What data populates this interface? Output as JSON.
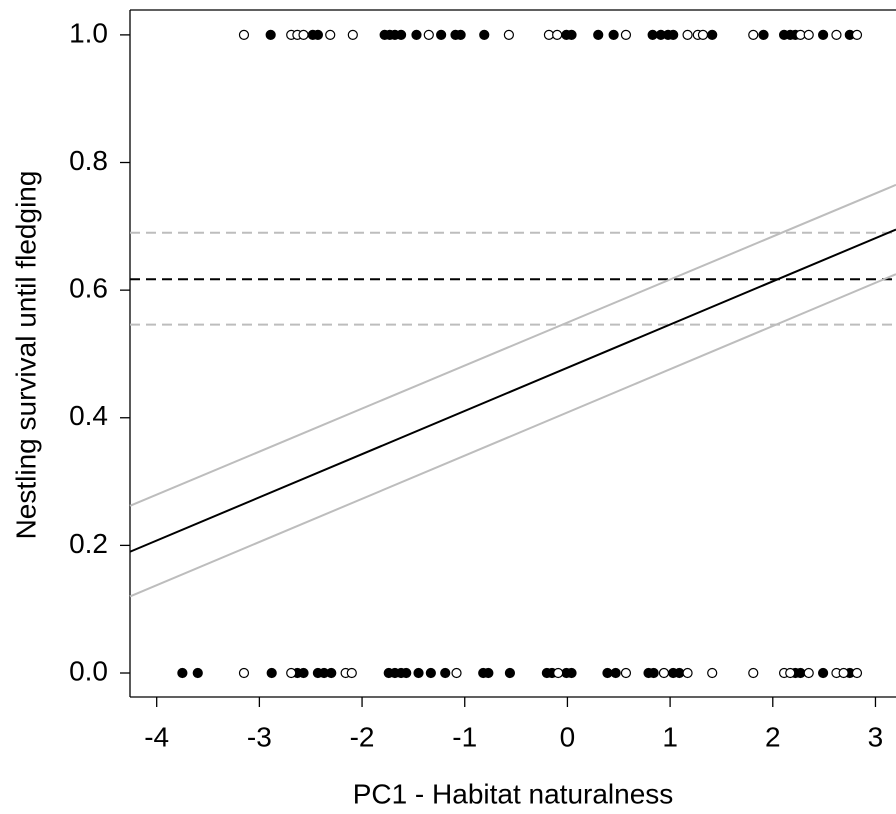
{
  "chart_data": {
    "type": "scatter",
    "x_label": "PC1 - Habitat naturalness",
    "y_label": "Nestling survival until fledging",
    "xlim": [
      -4.26,
      3.2
    ],
    "ylim": [
      -0.0376,
      1.039
    ],
    "xticks": [
      -4,
      -3,
      -2,
      -1,
      0,
      1,
      2,
      3
    ],
    "yticks": [
      {
        "value": 0,
        "label": "0.0"
      },
      0.2,
      0.4,
      0.6,
      0.8,
      {
        "value": 1,
        "label": "1.0"
      }
    ],
    "hlines": [
      {
        "value": 0.69,
        "color": "#bdbdbd",
        "dash": true
      },
      {
        "value": 0.617,
        "color": "#000000",
        "dash": true
      },
      {
        "value": 0.546,
        "color": "#bdbdbd",
        "dash": true
      }
    ],
    "series": [
      {
        "mode": "markers",
        "marker": "filled",
        "color": "#000000",
        "x": [
          -2.89,
          -2.48,
          -2.43,
          -1.78,
          -1.73,
          -1.68,
          -1.62,
          -1.47,
          -1.23,
          -1.09,
          -1.04,
          -0.81,
          -0.01,
          0.04,
          0.3,
          0.45,
          0.83,
          0.91,
          0.98,
          1.03,
          1.41,
          1.91,
          2.11,
          2.17,
          2.22,
          2.49,
          2.75,
          -3.75,
          -3.6,
          -2.88,
          -2.63,
          -2.57,
          -2.43,
          -2.37,
          -2.3,
          -1.74,
          -1.68,
          -1.62,
          -1.57,
          -1.45,
          -1.33,
          -1.19,
          -0.82,
          -0.77,
          -0.56,
          -0.2,
          -0.15,
          -0.01,
          0.04,
          0.39,
          0.47,
          0.79,
          0.84,
          1.03,
          1.09,
          2.22,
          2.27,
          2.49,
          2.75
        ],
        "values": [
          1,
          1,
          1,
          1,
          1,
          1,
          1,
          1,
          1,
          1,
          1,
          1,
          1,
          1,
          1,
          1,
          1,
          1,
          1,
          1,
          1,
          1,
          1,
          1,
          1,
          1,
          1,
          0,
          0,
          0,
          0,
          0,
          0,
          0,
          0,
          0,
          0,
          0,
          0,
          0,
          0,
          0,
          0,
          0,
          0,
          0,
          0,
          0,
          0,
          0,
          0,
          0,
          0,
          0,
          0,
          0,
          0,
          0,
          0
        ]
      },
      {
        "mode": "markers",
        "marker": "open",
        "color": "#000000",
        "x": [
          -3.15,
          -2.69,
          -2.63,
          -2.57,
          -2.31,
          -2.09,
          -1.35,
          -0.57,
          -0.18,
          -0.1,
          0.57,
          1.17,
          1.27,
          1.32,
          1.81,
          2.27,
          2.35,
          2.62,
          2.82,
          -3.15,
          -2.69,
          -2.16,
          -2.1,
          -1.08,
          -0.09,
          0.57,
          0.94,
          1.17,
          1.41,
          1.81,
          2.11,
          2.17,
          2.35,
          2.62,
          2.69,
          2.82
        ],
        "values": [
          1,
          1,
          1,
          1,
          1,
          1,
          1,
          1,
          1,
          1,
          1,
          1,
          1,
          1,
          1,
          1,
          1,
          1,
          1,
          0,
          0,
          0,
          0,
          0,
          0,
          0,
          0,
          0,
          0,
          0,
          0,
          0,
          0,
          0,
          0,
          0
        ]
      },
      {
        "mode": "line",
        "color": "#bdbdbd",
        "x": [
          -4.26,
          3.2
        ],
        "values": [
          0.262,
          0.765
        ]
      },
      {
        "mode": "line",
        "color": "#bdbdbd",
        "x": [
          -4.26,
          3.2
        ],
        "values": [
          0.12,
          0.625
        ]
      },
      {
        "mode": "line",
        "color": "#000000",
        "x": [
          -4.26,
          3.2
        ],
        "values": [
          0.19,
          0.695
        ]
      }
    ]
  }
}
